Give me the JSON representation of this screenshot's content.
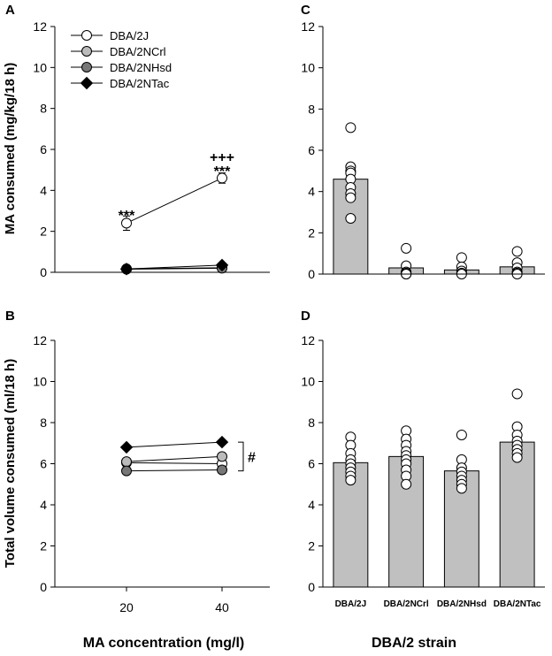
{
  "figure": {
    "left_xlabel": "MA concentration (mg/l)",
    "right_xlabel": "DBA/2 strain"
  },
  "chart_data": [
    {
      "panel": "A",
      "type": "line",
      "ylabel": "MA consumed (mg/kg/18 h)",
      "ylim": [
        0,
        12
      ],
      "yticks": [
        0,
        2,
        4,
        6,
        8,
        10,
        12
      ],
      "x": [
        20,
        40
      ],
      "xticks": [],
      "xlim": [
        5,
        50
      ],
      "series": [
        {
          "name": "DBA/2J",
          "values": [
            2.4,
            4.6
          ],
          "errors": [
            0.35,
            0.25
          ],
          "marker": "circle",
          "fill": "#ffffff"
        },
        {
          "name": "DBA/2NCrl",
          "values": [
            0.17,
            0.22
          ],
          "errors": [
            0.05,
            0.05
          ],
          "marker": "circle",
          "fill": "#bbbbbb"
        },
        {
          "name": "DBA/2NHsd",
          "values": [
            0.15,
            0.2
          ],
          "errors": [
            0.05,
            0.05
          ],
          "marker": "circle",
          "fill": "#777777"
        },
        {
          "name": "DBA/2NTac",
          "values": [
            0.16,
            0.35
          ],
          "errors": [
            0.05,
            0.05
          ],
          "marker": "diamond",
          "fill": "#000000"
        }
      ],
      "legend": {
        "placement": "top-left"
      },
      "annotations": [
        {
          "text": "***",
          "x": 20,
          "y": 2.9
        },
        {
          "text": "***",
          "x": 40,
          "y": 5.05
        },
        {
          "text": "+++",
          "x": 40,
          "y": 5.75
        }
      ]
    },
    {
      "panel": "B",
      "type": "line",
      "ylabel": "Total volume consumed (ml/18 h)",
      "ylim": [
        0,
        12
      ],
      "yticks": [
        0,
        2,
        4,
        6,
        8,
        10,
        12
      ],
      "x": [
        20,
        40
      ],
      "xticks": [
        20,
        40
      ],
      "xlim": [
        5,
        50
      ],
      "series": [
        {
          "name": "DBA/2J",
          "values": [
            6.05,
            6.0
          ],
          "errors": [
            0.1,
            0.1
          ],
          "marker": "circle",
          "fill": "#ffffff"
        },
        {
          "name": "DBA/2NCrl",
          "values": [
            6.1,
            6.35
          ],
          "errors": [
            0.1,
            0.1
          ],
          "marker": "circle",
          "fill": "#bbbbbb"
        },
        {
          "name": "DBA/2NHsd",
          "values": [
            5.65,
            5.7
          ],
          "errors": [
            0.1,
            0.1
          ],
          "marker": "circle",
          "fill": "#777777"
        },
        {
          "name": "DBA/2NTac",
          "values": [
            6.8,
            7.05
          ],
          "errors": [
            0.1,
            0.1
          ],
          "marker": "diamond",
          "fill": "#000000"
        }
      ],
      "bracket": {
        "text": "#",
        "y_low": 5.65,
        "y_high": 7.05
      }
    },
    {
      "panel": "C",
      "type": "bar",
      "ylim": [
        0,
        12
      ],
      "yticks": [
        0,
        2,
        4,
        6,
        8,
        10,
        12
      ],
      "categories": [
        "DBA/2J",
        "DBA/2NCrl",
        "DBA/2NHsd",
        "DBA/2NTac"
      ],
      "show_category_labels": false,
      "values": [
        4.6,
        0.3,
        0.2,
        0.35
      ],
      "points": [
        [
          7.1,
          5.2,
          5.0,
          4.9,
          4.6,
          4.2,
          3.9,
          3.7,
          2.7
        ],
        [
          1.25,
          0.4,
          0.1,
          0.05,
          0.0,
          0.0
        ],
        [
          0.8,
          0.35,
          0.15,
          0.05,
          0.0
        ],
        [
          1.1,
          0.55,
          0.3,
          0.1,
          0.05,
          0.0
        ]
      ]
    },
    {
      "panel": "D",
      "type": "bar",
      "ylim": [
        0,
        12
      ],
      "yticks": [
        0,
        2,
        4,
        6,
        8,
        10,
        12
      ],
      "categories": [
        "DBA/2J",
        "DBA/2NCrl",
        "DBA/2NHsd",
        "DBA/2NTac"
      ],
      "show_category_labels": true,
      "values": [
        6.05,
        6.35,
        5.65,
        7.05
      ],
      "points": [
        [
          7.3,
          6.9,
          6.5,
          6.2,
          6.0,
          5.8,
          5.6,
          5.4,
          5.2
        ],
        [
          7.6,
          7.2,
          6.9,
          6.6,
          6.4,
          6.2,
          6.0,
          5.7,
          5.4,
          5.0
        ],
        [
          7.4,
          6.2,
          5.8,
          5.6,
          5.4,
          5.2,
          5.0,
          4.8
        ],
        [
          9.4,
          7.8,
          7.4,
          7.1,
          6.9,
          6.7,
          6.5,
          6.3
        ]
      ]
    }
  ]
}
